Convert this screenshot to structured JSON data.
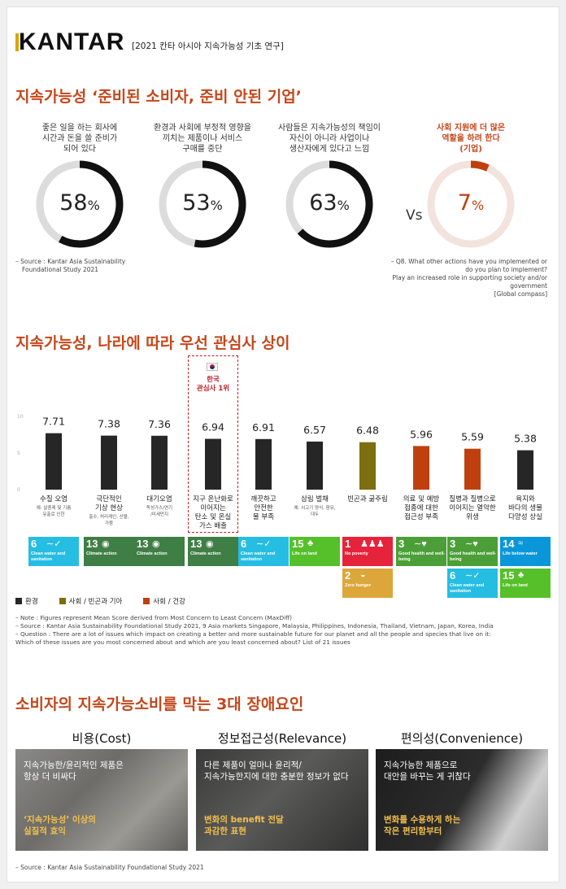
{
  "header": {
    "logo": "KANTAR",
    "tag": "[2021 칸타 아시아 지속가능성 기초 연구]"
  },
  "section1": {
    "title": "지속가능성 ‘준비된 소비자, 준비 안된 기업’",
    "donuts": [
      {
        "caption": [
          "좋은 일을 하는 회사에",
          "시간과 돈을 쓸 준비가",
          "되어 있다"
        ],
        "value": "58",
        "pct": "%",
        "fraction": 0.58
      },
      {
        "caption": [
          "환경과 사회에 부정적 영향을",
          "끼치는 제품이나 서비스",
          "구매를 중단"
        ],
        "value": "53",
        "pct": "%",
        "fraction": 0.53
      },
      {
        "caption": [
          "사람들은 지속가능성의 책임이",
          "자신이 아니라 사업이나",
          "생산자에게 있다고 느낌"
        ],
        "value": "63",
        "pct": "%",
        "fraction": 0.63
      },
      {
        "caption": [
          "사회 지원에 더 많은",
          "역할을 하려 한다",
          "(기업)"
        ],
        "value": "7",
        "pct": "%",
        "fraction": 0.07
      }
    ],
    "vs": "Vs",
    "source": [
      "– Source : Kantar Asia Sustainability",
      "Foundational Study 2021"
    ],
    "question": [
      "– Q8. What other actions have you implemented or",
      "do you plan to implement?",
      "Play an increased role in supporting society and/or",
      "government",
      "[Global compass]"
    ]
  },
  "section2": {
    "title": "지속가능성, 나라에 따라 우선 관심사 상이",
    "highlight": "한국\n관심사 1위",
    "highlight_l1": "한국",
    "highlight_l2": "관심사 1위",
    "legend": [
      {
        "label": "환경",
        "color": "#262626"
      },
      {
        "label": "사회 / 빈곤과 기아",
        "color": "#7d6e0f"
      },
      {
        "label": "사회 / 건강",
        "color": "#c0400d"
      }
    ],
    "notes": [
      "– Note : Figures represent Mean Score derived from Most Concern to Least Concern (MaxDiff)",
      "– Source : Kantar Asia Sustainability Foundational Study 2021, 9 Asia markets Singapore, Malaysia, Philippines, Indonesia, Thailand, Vietnam, Japan, Korea, India",
      "– Question : There are a lot of issues which impact on creating a better and more sustainable future for our planet and all the people and species that live on it:",
      "  Which of these issues are you most concerned about and which are you least concerned about? List of 21 issues"
    ],
    "sdg": [
      [
        {
          "num": "6",
          "icon": "∼✓",
          "text": "Clean water and sanitation",
          "color": "#26bde2"
        }
      ],
      [
        {
          "num": "13",
          "icon": "◉",
          "text": "Climate action",
          "color": "#3f7e44"
        }
      ],
      [
        {
          "num": "13",
          "icon": "◉",
          "text": "Climate action",
          "color": "#3f7e44"
        }
      ],
      [
        {
          "num": "13",
          "icon": "◉",
          "text": "Climate action",
          "color": "#3f7e44"
        }
      ],
      [
        {
          "num": "6",
          "icon": "∼✓",
          "text": "Clean water and sanitation",
          "color": "#26bde2"
        }
      ],
      [
        {
          "num": "15",
          "icon": "♣",
          "text": "Life on land",
          "color": "#56c02b"
        }
      ],
      [
        {
          "num": "1",
          "icon": "♟♟♟",
          "text": "No poverty",
          "color": "#e5243b"
        },
        {
          "num": "2",
          "icon": "◒",
          "text": "Zero hunger",
          "color": "#dda63a"
        }
      ],
      [
        {
          "num": "3",
          "icon": "∼♥",
          "text": "Good health and well-being",
          "color": "#4c9f38"
        }
      ],
      [
        {
          "num": "3",
          "icon": "∼♥",
          "text": "Good health and well-being",
          "color": "#4c9f38"
        },
        {
          "num": "6",
          "icon": "∼✓",
          "text": "Clean water and sanitation",
          "color": "#26bde2"
        }
      ],
      [
        {
          "num": "14",
          "icon": "≈",
          "text": "Life below water",
          "color": "#0a97d9"
        },
        {
          "num": "15",
          "icon": "♣",
          "text": "Life on land",
          "color": "#56c02b"
        }
      ]
    ]
  },
  "chart_data": {
    "type": "bar",
    "ylim": [
      0,
      10
    ],
    "yticks": [
      "10",
      "5",
      "0"
    ],
    "categories": [
      {
        "label": [
          "수질 오염"
        ],
        "sub": [
          "예: 살충제 및 기름",
          "유출로 인한"
        ]
      },
      {
        "label": [
          "극단적인",
          "기상 현상"
        ],
        "sub": [
          "홍수, 허리케인, 산불,",
          "가뭄"
        ]
      },
      {
        "label": [
          "대기오염"
        ],
        "sub": [
          "독성가스/연기",
          "/미세먼지"
        ]
      },
      {
        "label": [
          "지구 온난화로",
          "이어지는",
          "탄소 및 온실",
          "가스 배출"
        ],
        "sub": []
      },
      {
        "label": [
          "깨끗하고",
          "안전한",
          "물 부족"
        ],
        "sub": []
      },
      {
        "label": [
          "삼림 벌채"
        ],
        "sub": [
          "예: 쇠고기 양식, 팜유,",
          "대두"
        ]
      },
      {
        "label": [
          "빈곤과 굶주림"
        ],
        "sub": []
      },
      {
        "label": [
          "의료 및 예방",
          "접종에 대한",
          "접근성 부족"
        ],
        "sub": []
      },
      {
        "label": [
          "질병과 질병으로",
          "이어지는 열악한",
          "위생"
        ],
        "sub": []
      },
      {
        "label": [
          "육지와",
          "바다의 생물",
          "다양성 상실"
        ],
        "sub": []
      }
    ],
    "values": [
      7.71,
      7.38,
      7.36,
      6.94,
      6.91,
      6.57,
      6.48,
      5.96,
      5.59,
      5.38
    ],
    "labels": [
      "7.71",
      "7.38",
      "7.36",
      "6.94",
      "6.91",
      "6.57",
      "6.48",
      "5.96",
      "5.59",
      "5.38"
    ],
    "groups": [
      "환경",
      "환경",
      "환경",
      "환경",
      "환경",
      "환경",
      "사회 / 빈곤과 기아",
      "사회 / 건강",
      "사회 / 건강",
      "환경"
    ],
    "colors": [
      "#262626",
      "#262626",
      "#262626",
      "#262626",
      "#262626",
      "#262626",
      "#7d6e0f",
      "#c0400d",
      "#c0400d",
      "#262626"
    ],
    "highlight_index": 3
  },
  "section3": {
    "title": "소비자의 지속가능소비를 막는 3대 장애요인",
    "panels": [
      {
        "title": "비용(Cost)",
        "text1": [
          "지속가능한/윤리적인 제품은",
          "항상 더 비싸다"
        ],
        "text2": [
          "‘지속가능성’ 이상의",
          "실질적 효익"
        ]
      },
      {
        "title": "정보접근성(Relevance)",
        "text1": [
          "다른 제품이 얼마나 윤리적/",
          "지속가능한지에 대한 충분한 정보가 없다"
        ],
        "text2": [
          "변화의 benefit 전달",
          "과감한 표현"
        ]
      },
      {
        "title": "편의성(Convenience)",
        "text1": [
          "지속가능한 제품으로",
          "대안을 바꾸는 게 귀찮다"
        ],
        "text2": [
          "변화를 수용하게 하는",
          "작은 편리함부터"
        ]
      }
    ],
    "source": "– Source : Kantar Asia Sustainability Foundational Study 2021"
  }
}
